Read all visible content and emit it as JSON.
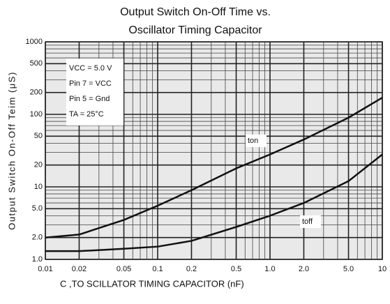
{
  "chart_data": {
    "type": "line",
    "title": [
      "Output Switch On-Off Time vs.",
      "Oscillator Timing Capacitor"
    ],
    "x_label": "C ,TO SCILLATOR TIMING CAPACITOR (nF)",
    "y_label": "Output Switch On-Off Teim (μS)",
    "x": [
      0.01,
      0.02,
      0.05,
      0.1,
      0.2,
      0.5,
      1,
      2,
      5,
      10
    ],
    "series": [
      {
        "name": "ton",
        "color": "#111111",
        "values": [
          2.0,
          2.2,
          3.5,
          5.5,
          9,
          18,
          28,
          45,
          90,
          170
        ]
      },
      {
        "name": "toff",
        "color": "#111111",
        "values": [
          1.3,
          1.3,
          1.4,
          1.5,
          1.8,
          2.8,
          4,
          6,
          12,
          28
        ]
      }
    ],
    "annotations": [
      "VCC = 5.0 V",
      "Pin 7 = VCC",
      "Pin 5 = Gnd",
      "TA = 25°C"
    ],
    "xlim": [
      0.01,
      10
    ],
    "ylim": [
      1,
      1000
    ],
    "xticks": [
      0.01,
      0.02,
      0.05,
      0.1,
      0.2,
      0.5,
      {
        "value": 1,
        "label": "1.0"
      },
      {
        "value": 2,
        "label": "2.0"
      },
      {
        "value": 5,
        "label": "5.0"
      },
      10
    ],
    "yticks": [
      {
        "value": 1,
        "label": "1.0"
      },
      {
        "value": 2,
        "label": "2.0"
      },
      {
        "value": 5,
        "label": "5.0"
      },
      10,
      20,
      50,
      100,
      200,
      500,
      1000
    ],
    "xscale": "log",
    "yscale": "log",
    "grid": true
  }
}
